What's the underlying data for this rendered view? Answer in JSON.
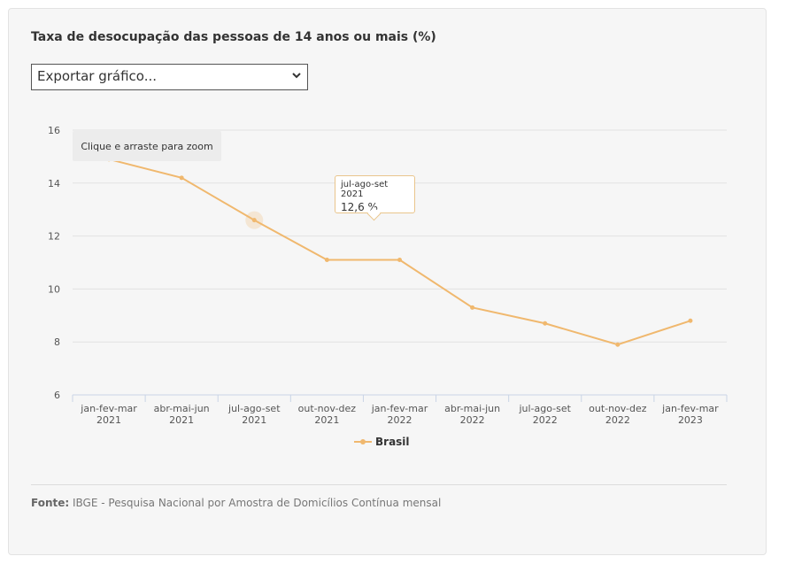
{
  "chart_title": "Taxa de desocupação das pessoas de 14 anos ou mais (%)",
  "export_select": {
    "value": "Exportar gráfico...",
    "icon": "chevron-down-icon"
  },
  "zoom_hint": "Clique e arraste para zoom",
  "tooltip": {
    "category": "jul-ago-set 2021",
    "value": "12,6 %"
  },
  "source": {
    "label": "Fonte:",
    "text": "IBGE - Pesquisa Nacional por Amostra de Domicílios Contínua mensal"
  },
  "colors": {
    "series": "#f0b86e",
    "grid": "#e2e2e2",
    "axis": "#c9d4e6"
  },
  "chart_data": {
    "type": "line",
    "categories": [
      [
        "jan-fev-mar",
        "2021"
      ],
      [
        "abr-mai-jun",
        "2021"
      ],
      [
        "jul-ago-set",
        "2021"
      ],
      [
        "out-nov-dez",
        "2021"
      ],
      [
        "jan-fev-mar",
        "2022"
      ],
      [
        "abr-mai-jun",
        "2022"
      ],
      [
        "jul-ago-set",
        "2022"
      ],
      [
        "out-nov-dez",
        "2022"
      ],
      [
        "jan-fev-mar",
        "2023"
      ]
    ],
    "series": [
      {
        "name": "Brasil",
        "values": [
          14.9,
          14.2,
          12.6,
          11.1,
          11.1,
          9.3,
          8.7,
          7.9,
          8.8
        ]
      }
    ],
    "y_ticks": [
      6,
      8,
      10,
      12,
      14,
      16
    ],
    "ylim": [
      6,
      16
    ],
    "grid": true,
    "legend_position": "bottom-center",
    "highlighted_index": 2
  }
}
